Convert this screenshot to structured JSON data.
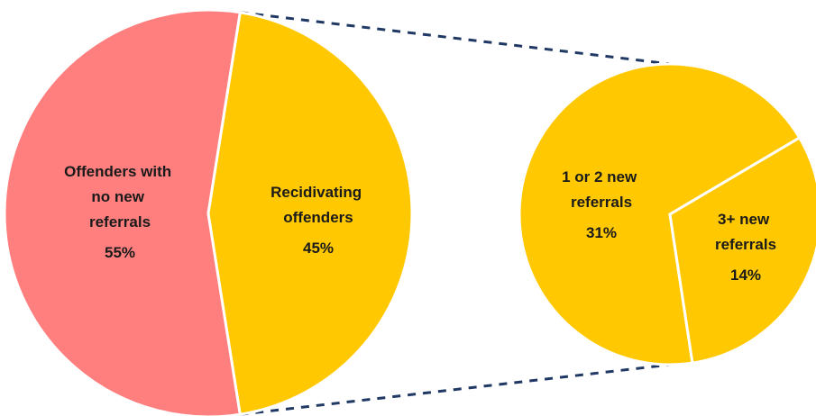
{
  "chart_data": {
    "type": "pie",
    "categories": [
      "Offenders with no new referrals",
      "Recidivating offenders"
    ],
    "values": [
      55,
      45
    ],
    "value_labels": [
      "55%",
      "45%"
    ],
    "colors": [
      "#ff7f7f",
      "#ffc800"
    ],
    "secondary": {
      "categories": [
        "1 or 2 new referrals",
        "3+ new referrals"
      ],
      "values": [
        31,
        14
      ],
      "value_labels": [
        "31%",
        "14%"
      ],
      "colors": [
        "#ffc800",
        "#ffc800"
      ]
    }
  }
}
